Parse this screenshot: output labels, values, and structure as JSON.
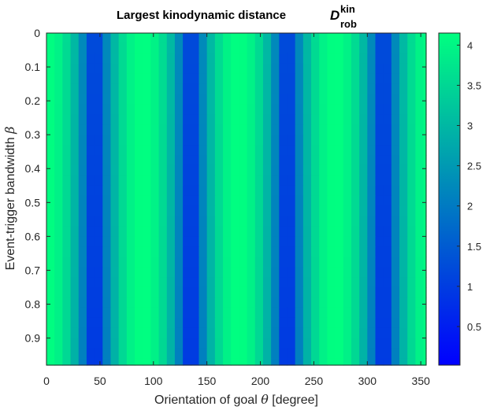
{
  "chart_data": {
    "type": "heatmap",
    "title": {
      "text": "Largest kinodynamic distance",
      "symbol": "D",
      "superscript": "kin",
      "subscript": "rob"
    },
    "xlabel": {
      "prefix": "Orientation of goal ",
      "symbol": "θ",
      "suffix": " [degree]"
    },
    "ylabel": {
      "prefix": "Event-trigger bandwidth ",
      "symbol": "β"
    },
    "x_range": [
      0,
      355
    ],
    "y_range": [
      0,
      0.98
    ],
    "y_reversed": true,
    "x_step": 7.5,
    "y_step": 0.03,
    "x_ticks": [
      0,
      50,
      100,
      150,
      200,
      250,
      300,
      350
    ],
    "x_tick_labels": [
      "0",
      "50",
      "100",
      "150",
      "200",
      "250",
      "300",
      "350"
    ],
    "y_ticks": [
      0,
      0.1,
      0.2,
      0.3,
      0.4,
      0.5,
      0.6,
      0.7,
      0.8,
      0.9
    ],
    "y_tick_labels": [
      "0",
      "0.1",
      "0.2",
      "0.3",
      "0.4",
      "0.5",
      "0.6",
      "0.7",
      "0.8",
      "0.9"
    ],
    "colormap": "winter",
    "colormap_stops": [
      "#0000ff",
      "#00ff80"
    ],
    "color_range": [
      0.02,
      4.15
    ],
    "colorbar_ticks": [
      0.5,
      1,
      1.5,
      2,
      2.5,
      3,
      3.5,
      4
    ],
    "colorbar_tick_labels": [
      "0.5",
      "1",
      "1.5",
      "2",
      "2.5",
      "3",
      "3.5",
      "4"
    ],
    "value_model": {
      "description_free": true,
      "period_degrees": 90,
      "minimum_orientations": [
        45,
        135,
        225,
        315
      ],
      "maximum_orientations": [
        0,
        90,
        180,
        270
      ],
      "value_min": 0.02,
      "value_max": 4.15,
      "low_beta_minimum": 0.35,
      "high_beta_minimum": 0.02
    }
  }
}
